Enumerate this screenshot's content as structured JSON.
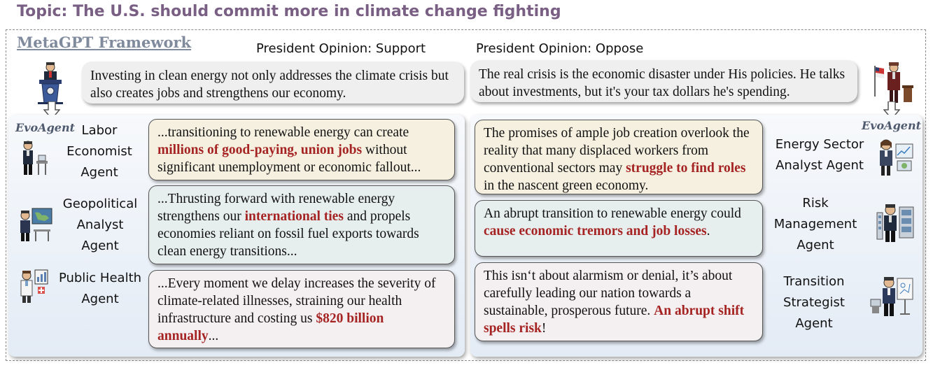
{
  "topic": "Topic: The U.S. should commit more in climate change fighting",
  "framework_title": "MetaGPT Framework",
  "support": {
    "label": "President Opinion: Support",
    "speech": "Investing in clean energy not only addresses the climate crisis but also creates jobs and strengthens our economy."
  },
  "oppose": {
    "label": "President Opinion: Oppose",
    "speech": "The real crisis is the economic disaster under His policies. He talks about investments, but it's your tax dollars he's spending."
  },
  "evoagent_label": "EvoAgent",
  "left_agents": [
    {
      "name_lines": [
        "Labor",
        "Economist",
        "Agent"
      ],
      "text_before": "...transitioning to renewable energy can create ",
      "highlight": "millions of good-paying, union jobs",
      "text_after": " without significant unemployment or economic fallout..."
    },
    {
      "name_lines": [
        "Geopolitical",
        "Analyst",
        "Agent"
      ],
      "text_before": "...Thrusting forward with renewable energy strengthens our ",
      "highlight": "international ties",
      "text_after": " and propels economies reliant on fossil fuel exports towards clean energy transitions..."
    },
    {
      "name_lines": [
        "Public Health",
        "Agent"
      ],
      "text_before": "...Every moment we delay increases the severity of climate-related illnesses, straining our health infrastructure and costing us ",
      "highlight": "$820 billion annually",
      "text_after": "..."
    }
  ],
  "right_agents": [
    {
      "name_lines": [
        "Energy Sector",
        "Analyst Agent"
      ],
      "text_before": "The promises of ample job creation overlook the reality that many displaced workers from conventional sectors may ",
      "highlight": "struggle to find roles",
      "text_after": " in the nascent green economy."
    },
    {
      "name_lines": [
        "Risk",
        "Management",
        "Agent"
      ],
      "text_before": "An abrupt transition to renewable energy could ",
      "highlight": "cause economic tremors and job losses",
      "text_after": "."
    },
    {
      "name_lines": [
        "Transition",
        "Strategist",
        "Agent"
      ],
      "text_before": "This isn‘t about alarmism or denial, it’s about carefully leading our nation towards a sustainable, prosperous future. ",
      "highlight": "An abrupt shift spells risk",
      "text_after": "!"
    }
  ],
  "icons": [
    "president-podium-icon",
    "opponent-podium-icon",
    "labor-economist-icon",
    "geopolitical-analyst-icon",
    "public-health-icon",
    "energy-analyst-icon",
    "risk-manager-icon",
    "transition-strategist-icon"
  ],
  "colors": {
    "highlight": "#a52423",
    "topic": "#7a5f84",
    "framework": "#7f8a9c"
  }
}
